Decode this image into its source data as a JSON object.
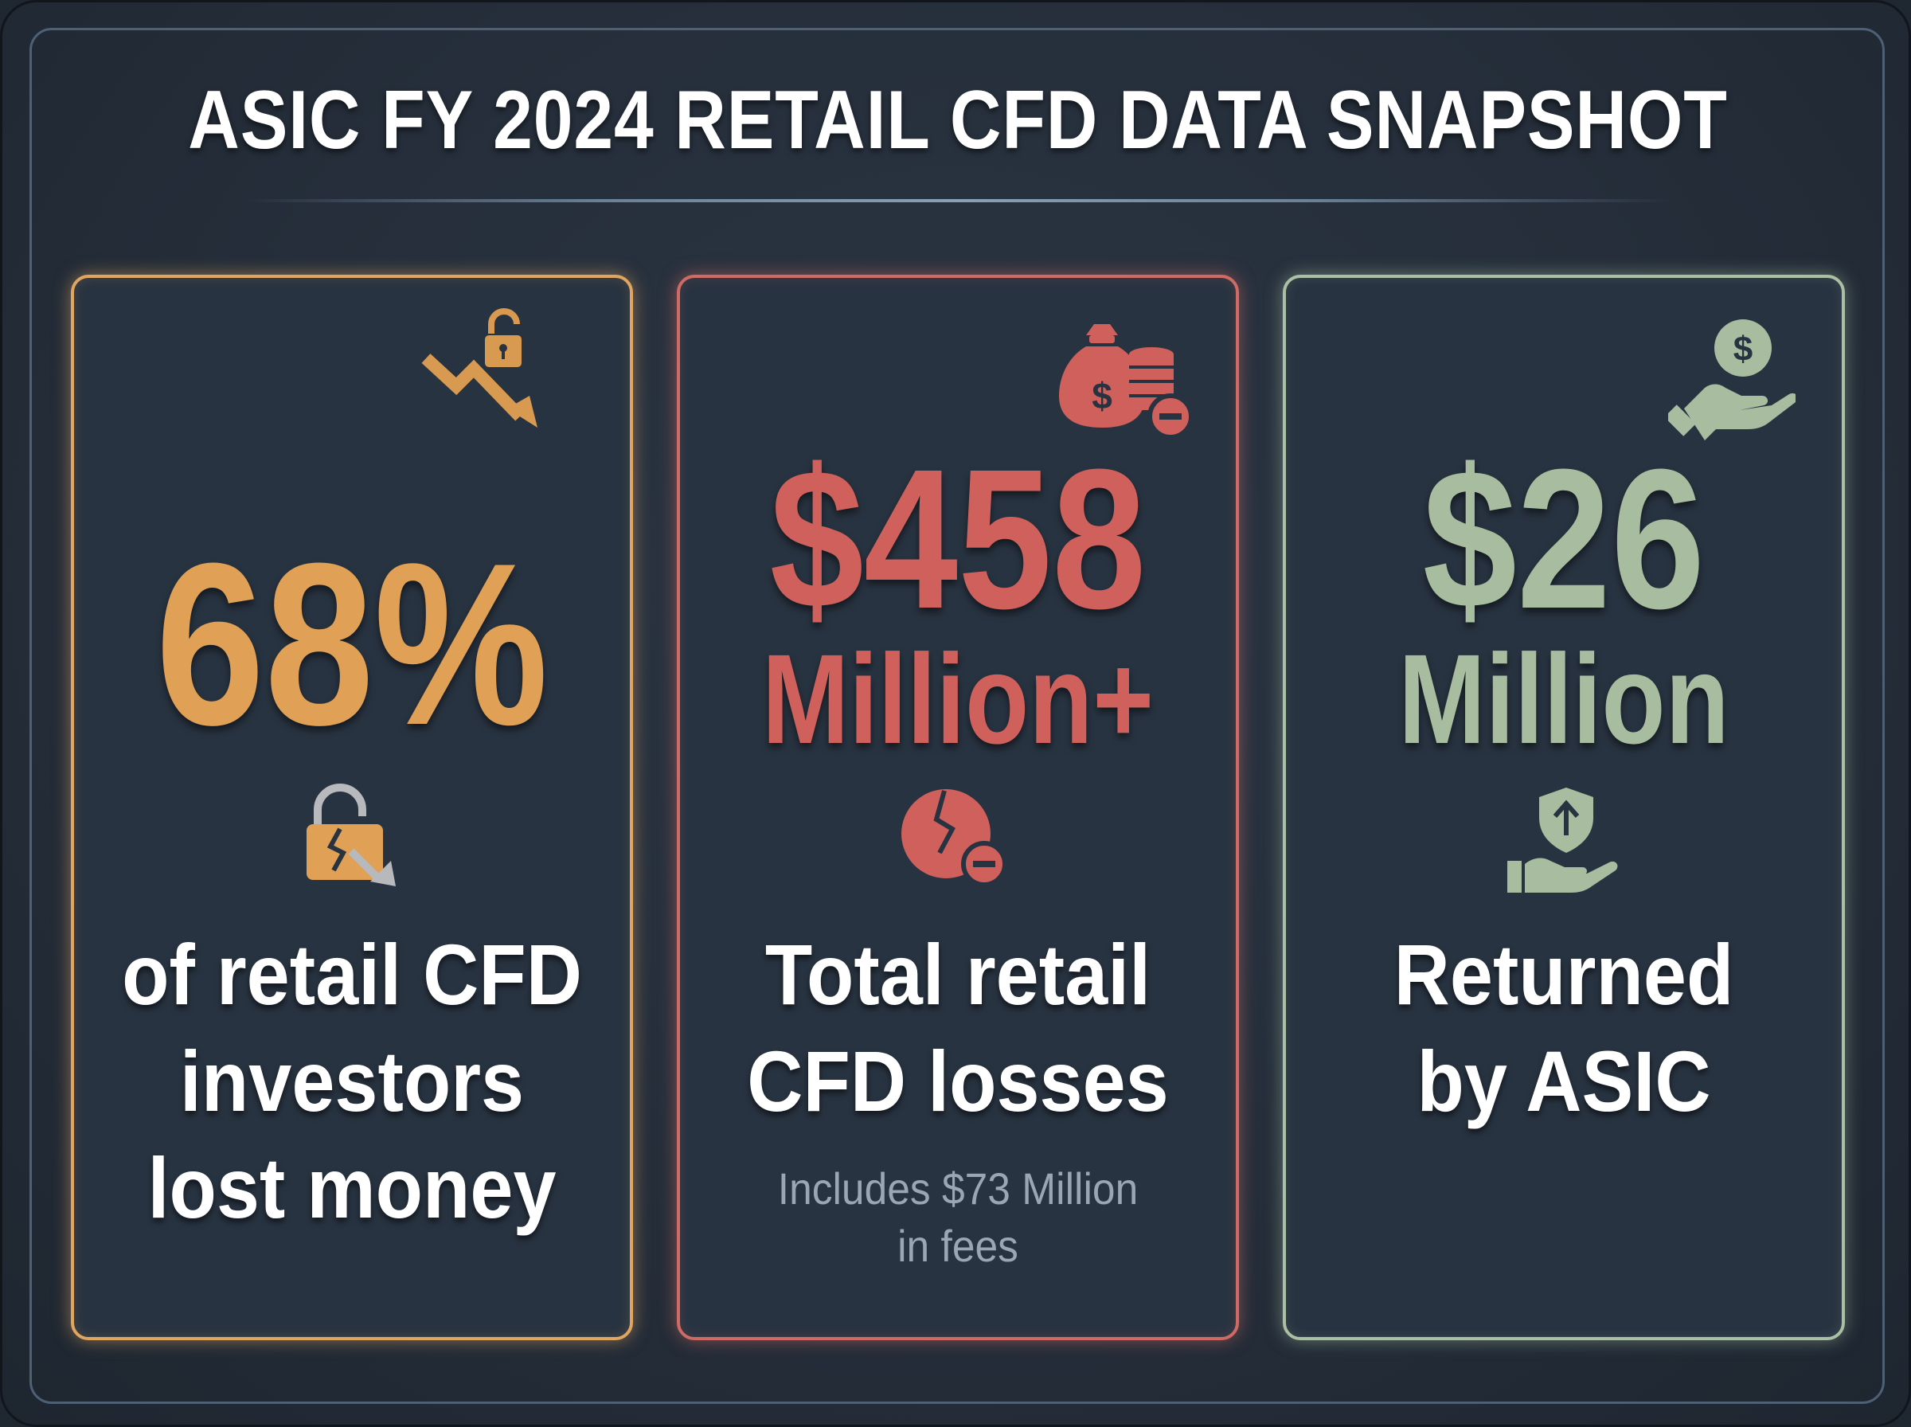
{
  "title": "ASIC FY 2024 RETAIL CFD DATA SNAPSHOT",
  "colors": {
    "orange": "#e0a055",
    "red": "#d0605c",
    "green": "#a8bd9f",
    "background": "#262f3b"
  },
  "cards": [
    {
      "value": "68%",
      "description": [
        "of retail CFD",
        "investors",
        "lost money"
      ],
      "top_icon": "chart-down-lock-icon",
      "mid_icon": "broken-lock-icon"
    },
    {
      "value_line1": "$458",
      "value_line2": "Million+",
      "description": [
        "Total retail",
        "CFD losses"
      ],
      "note": [
        "Includes $73 Million",
        "in fees"
      ],
      "top_icon": "money-bag-coins-minus-icon",
      "mid_icon": "broken-coin-minus-icon"
    },
    {
      "value_line1": "$26",
      "value_line2": "Million",
      "description": [
        "Returned",
        "by ASIC"
      ],
      "top_icon": "hand-dollar-coin-icon",
      "mid_icon": "hand-shield-arrow-icon"
    }
  ]
}
